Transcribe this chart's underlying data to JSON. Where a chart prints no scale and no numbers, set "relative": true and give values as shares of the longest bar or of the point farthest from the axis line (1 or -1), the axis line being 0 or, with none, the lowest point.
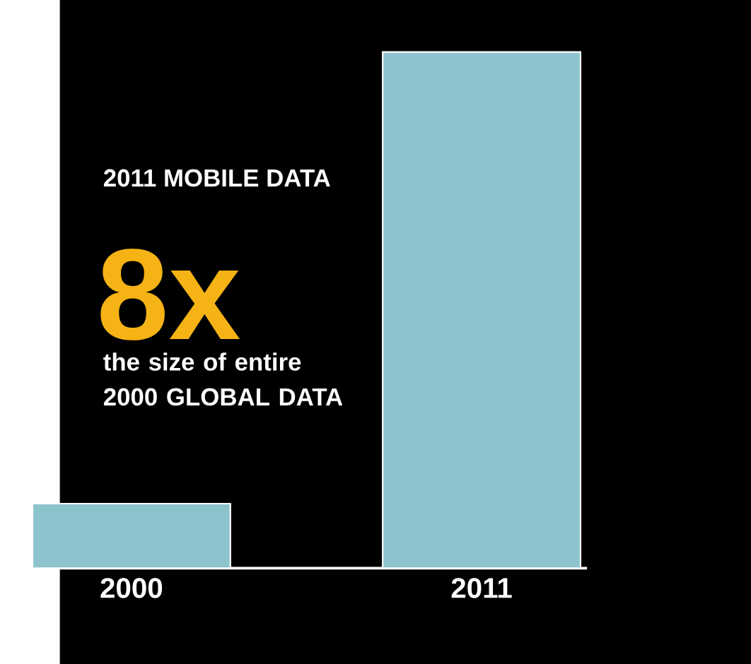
{
  "chart_data": {
    "type": "bar",
    "relative": true,
    "categories": [
      "2000",
      "2011"
    ],
    "values": [
      0.125,
      1
    ],
    "color": "#8cc3cc",
    "annotations": [
      "2011 MOBILE DATA",
      "8x",
      "the size of entire 2000 GLOBAL DATA"
    ]
  }
}
